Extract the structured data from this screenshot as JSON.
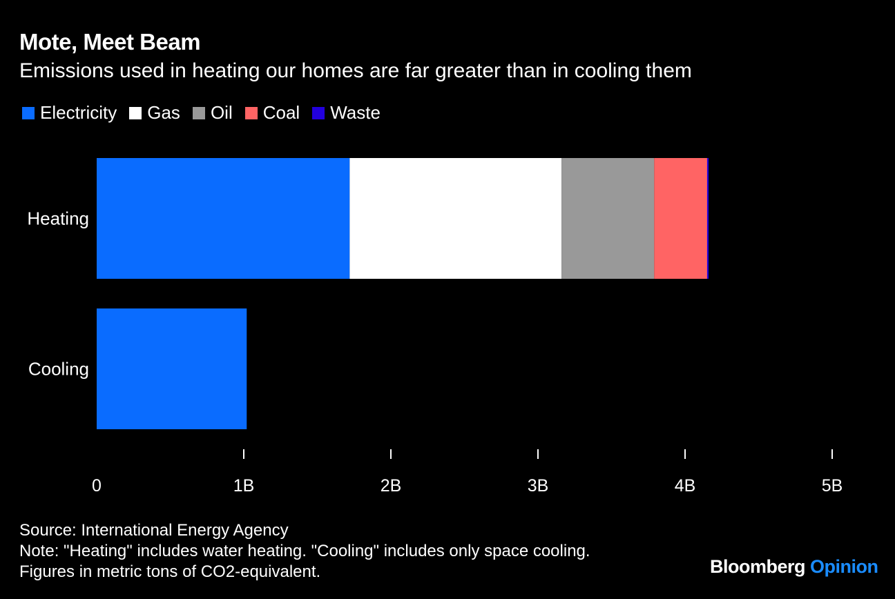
{
  "chart_data": {
    "type": "bar",
    "orientation": "horizontal",
    "stacked": true,
    "title": "Mote, Meet Beam",
    "subtitle": "Emissions used in heating our homes are far greater than in cooling them",
    "categories": [
      "Heating",
      "Cooling"
    ],
    "series": [
      {
        "name": "Electricity",
        "color": "#0a6cff",
        "values": [
          1.72,
          1.02
        ]
      },
      {
        "name": "Gas",
        "color": "#ffffff",
        "values": [
          1.44,
          0
        ]
      },
      {
        "name": "Oil",
        "color": "#999999",
        "values": [
          0.63,
          0
        ]
      },
      {
        "name": "Coal",
        "color": "#ff6464",
        "values": [
          0.36,
          0
        ]
      },
      {
        "name": "Waste",
        "color": "#2200dd",
        "values": [
          0.01,
          0
        ]
      }
    ],
    "xlim": [
      0,
      5
    ],
    "xticks": [
      0,
      1,
      2,
      3,
      4,
      5
    ],
    "xtick_labels": [
      "0",
      "1B",
      "2B",
      "3B",
      "4B",
      "5B"
    ],
    "xlabel": "",
    "ylabel": "",
    "grid": false,
    "legend_position": "top-left",
    "units": "billion metric tons CO2-equivalent"
  },
  "footer": {
    "source": "Source: International Energy Agency",
    "note": "Note: \"Heating\" includes water heating. \"Cooling\" includes only space cooling.",
    "figures": "Figures in metric tons of CO2-equivalent."
  },
  "brand": {
    "name": "Bloomberg",
    "section": "Opinion"
  }
}
